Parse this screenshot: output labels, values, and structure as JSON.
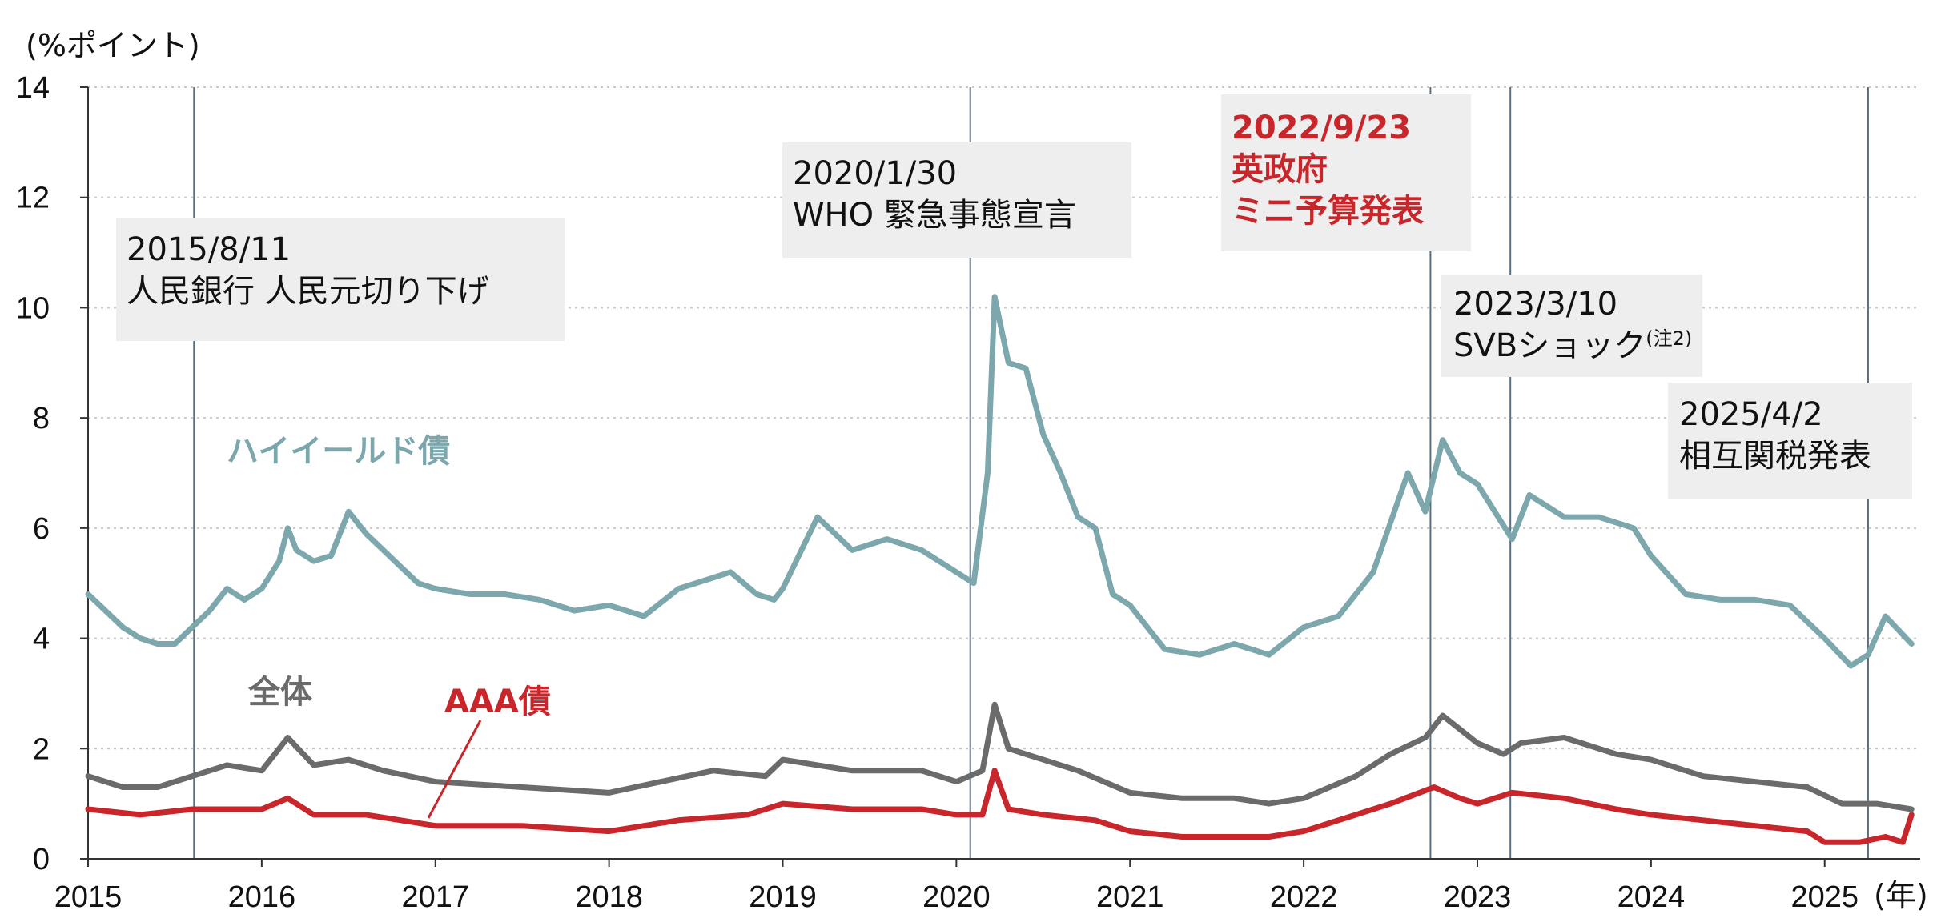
{
  "chart_data": {
    "type": "line",
    "y_unit_label": "(%ポイント)",
    "x_unit_label": "(年)",
    "ylim": [
      0,
      14
    ],
    "yticks": [
      "0",
      "2",
      "4",
      "6",
      "8",
      "10",
      "12",
      "14"
    ],
    "xlim": [
      2015.0,
      2025.55
    ],
    "xticks": [
      "2015",
      "2016",
      "2017",
      "2018",
      "2019",
      "2020",
      "2021",
      "2022",
      "2023",
      "2024",
      "2025"
    ],
    "grid": "horizontal dotted",
    "colors": {
      "high_yield": "#7ba7ad",
      "overall": "#6b6b6b",
      "aaa": "#c8262a",
      "event_line": "#5a6e82"
    },
    "series": [
      {
        "name": "ハイイールド債",
        "x": [
          2015.0,
          2015.1,
          2015.2,
          2015.3,
          2015.4,
          2015.5,
          2015.6,
          2015.7,
          2015.8,
          2015.9,
          2016.0,
          2016.1,
          2016.15,
          2016.2,
          2016.3,
          2016.4,
          2016.5,
          2016.6,
          2016.7,
          2016.8,
          2016.9,
          2017.0,
          2017.2,
          2017.4,
          2017.6,
          2017.8,
          2018.0,
          2018.2,
          2018.4,
          2018.5,
          2018.7,
          2018.85,
          2018.95,
          2019.0,
          2019.2,
          2019.4,
          2019.6,
          2019.8,
          2020.0,
          2020.1,
          2020.18,
          2020.22,
          2020.3,
          2020.4,
          2020.5,
          2020.6,
          2020.7,
          2020.8,
          2020.9,
          2021.0,
          2021.2,
          2021.4,
          2021.6,
          2021.8,
          2022.0,
          2022.2,
          2022.4,
          2022.5,
          2022.6,
          2022.7,
          2022.8,
          2022.9,
          2023.0,
          2023.1,
          2023.2,
          2023.3,
          2023.5,
          2023.7,
          2023.9,
          2024.0,
          2024.2,
          2024.4,
          2024.6,
          2024.8,
          2025.0,
          2025.15,
          2025.25,
          2025.35,
          2025.5
        ],
        "values": [
          4.8,
          4.5,
          4.2,
          4.0,
          3.9,
          3.9,
          4.2,
          4.5,
          4.9,
          4.7,
          4.9,
          5.4,
          6.0,
          5.6,
          5.4,
          5.5,
          6.3,
          5.9,
          5.6,
          5.3,
          5.0,
          4.9,
          4.8,
          4.8,
          4.7,
          4.5,
          4.6,
          4.4,
          4.9,
          5.0,
          5.2,
          4.8,
          4.7,
          4.9,
          6.2,
          5.6,
          5.8,
          5.6,
          5.2,
          5.0,
          7.0,
          10.2,
          9.0,
          8.9,
          7.7,
          7.0,
          6.2,
          6.0,
          4.8,
          4.6,
          3.8,
          3.7,
          3.9,
          3.7,
          4.2,
          4.4,
          5.2,
          6.1,
          7.0,
          6.3,
          7.6,
          7.0,
          6.8,
          6.3,
          5.8,
          6.6,
          6.2,
          6.2,
          6.0,
          5.5,
          4.8,
          4.7,
          4.7,
          4.6,
          4.0,
          3.5,
          3.7,
          4.4,
          3.9
        ]
      },
      {
        "name": "全体",
        "x": [
          2015.0,
          2015.2,
          2015.4,
          2015.6,
          2015.8,
          2016.0,
          2016.15,
          2016.3,
          2016.5,
          2016.7,
          2017.0,
          2017.5,
          2018.0,
          2018.3,
          2018.6,
          2018.9,
          2019.0,
          2019.4,
          2019.8,
          2020.0,
          2020.15,
          2020.22,
          2020.3,
          2020.5,
          2020.7,
          2021.0,
          2021.3,
          2021.6,
          2021.8,
          2022.0,
          2022.3,
          2022.5,
          2022.7,
          2022.8,
          2023.0,
          2023.15,
          2023.25,
          2023.5,
          2023.8,
          2024.0,
          2024.3,
          2024.6,
          2024.9,
          2025.1,
          2025.3,
          2025.5
        ],
        "values": [
          1.5,
          1.3,
          1.3,
          1.5,
          1.7,
          1.6,
          2.2,
          1.7,
          1.8,
          1.6,
          1.4,
          1.3,
          1.2,
          1.4,
          1.6,
          1.5,
          1.8,
          1.6,
          1.6,
          1.4,
          1.6,
          2.8,
          2.0,
          1.8,
          1.6,
          1.2,
          1.1,
          1.1,
          1.0,
          1.1,
          1.5,
          1.9,
          2.2,
          2.6,
          2.1,
          1.9,
          2.1,
          2.2,
          1.9,
          1.8,
          1.5,
          1.4,
          1.3,
          1.0,
          1.0,
          0.9
        ]
      },
      {
        "name": "AAA債",
        "x": [
          2015.0,
          2015.3,
          2015.6,
          2015.9,
          2016.0,
          2016.15,
          2016.3,
          2016.6,
          2016.8,
          2017.0,
          2017.5,
          2018.0,
          2018.4,
          2018.8,
          2019.0,
          2019.4,
          2019.8,
          2020.0,
          2020.15,
          2020.22,
          2020.3,
          2020.5,
          2020.8,
          2021.0,
          2021.3,
          2021.6,
          2021.8,
          2022.0,
          2022.3,
          2022.5,
          2022.75,
          2022.9,
          2023.0,
          2023.2,
          2023.5,
          2023.8,
          2024.0,
          2024.3,
          2024.6,
          2024.9,
          2025.0,
          2025.2,
          2025.35,
          2025.45,
          2025.5
        ],
        "values": [
          0.9,
          0.8,
          0.9,
          0.9,
          0.9,
          1.1,
          0.8,
          0.8,
          0.7,
          0.6,
          0.6,
          0.5,
          0.7,
          0.8,
          1.0,
          0.9,
          0.9,
          0.8,
          0.8,
          1.6,
          0.9,
          0.8,
          0.7,
          0.5,
          0.4,
          0.4,
          0.4,
          0.5,
          0.8,
          1.0,
          1.3,
          1.1,
          1.0,
          1.2,
          1.1,
          0.9,
          0.8,
          0.7,
          0.6,
          0.5,
          0.3,
          0.3,
          0.4,
          0.3,
          0.8
        ]
      }
    ],
    "event_lines": [
      2015.61,
      2020.08,
      2022.73,
      2023.19,
      2025.25
    ],
    "annotations": [
      {
        "lines": [
          "2015/8/11",
          "人民銀行 人民元切り下げ"
        ],
        "color": "dark"
      },
      {
        "lines": [
          "2020/1/30",
          "WHO 緊急事態宣言"
        ],
        "color": "dark"
      },
      {
        "lines": [
          "2022/9/23",
          "英政府",
          "ミニ予算発表"
        ],
        "color": "red"
      },
      {
        "lines": [
          "2023/3/10",
          "SVBショック"
        ],
        "sup": "(注2)",
        "color": "dark"
      },
      {
        "lines": [
          "2025/4/2",
          "相互関税発表"
        ],
        "color": "dark"
      }
    ],
    "series_labels": [
      "ハイイールド債",
      "全体",
      "AAA債"
    ]
  }
}
